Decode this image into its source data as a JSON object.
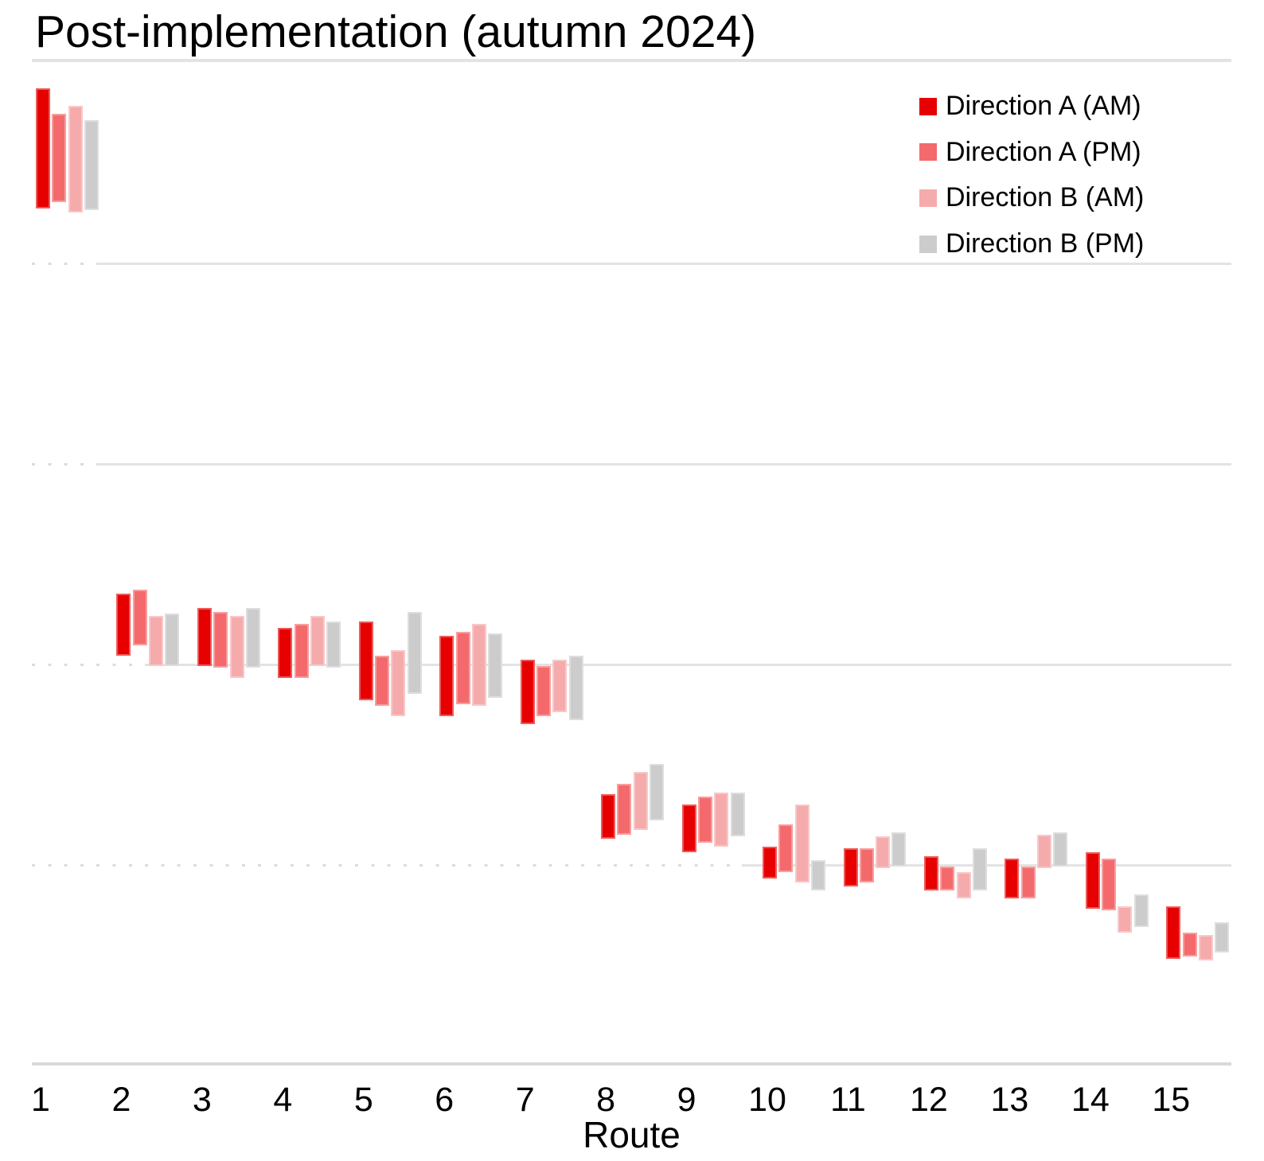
{
  "chart": {
    "title": "Post-implementation (autumn 2024)",
    "x_axis_title": "Route"
  },
  "chart_data": {
    "type": "bar",
    "subtype": "floating-range-bars",
    "title": "Post-implementation (autumn 2024)",
    "xlabel": "Route",
    "ylabel": "",
    "y_axis_note": "no y-axis tick labels visible; values expressed in gridline units (x-axis baseline = 0, horizontal gridlines at 1, 2, 3, 4)",
    "grid": "horizontal-only",
    "gridlines_at": [
      1,
      2,
      3,
      4
    ],
    "ylim": [
      0,
      4.95
    ],
    "legend_position": "top-right",
    "categories": [
      "1",
      "2",
      "3",
      "4",
      "5",
      "6",
      "7",
      "8",
      "9",
      "10",
      "11",
      "12",
      "13",
      "14",
      "15"
    ],
    "series": [
      {
        "name": "Direction A (AM)",
        "color": "#e60000",
        "ranges": [
          [
            4.27,
            4.87
          ],
          [
            2.04,
            2.35
          ],
          [
            1.99,
            2.28
          ],
          [
            1.93,
            2.18
          ],
          [
            1.82,
            2.21
          ],
          [
            1.74,
            2.14
          ],
          [
            1.7,
            2.02
          ],
          [
            1.13,
            1.35
          ],
          [
            1.06,
            1.3
          ],
          [
            0.93,
            1.09
          ],
          [
            0.89,
            1.08
          ],
          [
            0.87,
            1.04
          ],
          [
            0.83,
            1.03
          ],
          [
            0.78,
            1.06
          ],
          [
            0.53,
            0.79
          ]
        ]
      },
      {
        "name": "Direction A (PM)",
        "color": "#f46a6c",
        "ranges": [
          [
            4.3,
            4.74
          ],
          [
            2.09,
            2.37
          ],
          [
            1.98,
            2.26
          ],
          [
            1.93,
            2.2
          ],
          [
            1.79,
            2.04
          ],
          [
            1.8,
            2.16
          ],
          [
            1.74,
            1.99
          ],
          [
            1.15,
            1.4
          ],
          [
            1.11,
            1.34
          ],
          [
            0.96,
            1.2
          ],
          [
            0.91,
            1.08
          ],
          [
            0.87,
            0.99
          ],
          [
            0.83,
            0.99
          ],
          [
            0.77,
            1.03
          ],
          [
            0.54,
            0.66
          ]
        ]
      },
      {
        "name": "Direction B (AM)",
        "color": "#f5abac",
        "ranges": [
          [
            4.25,
            4.78
          ],
          [
            1.99,
            2.24
          ],
          [
            1.93,
            2.24
          ],
          [
            1.99,
            2.24
          ],
          [
            1.74,
            2.07
          ],
          [
            1.79,
            2.2
          ],
          [
            1.76,
            2.02
          ],
          [
            1.17,
            1.46
          ],
          [
            1.09,
            1.36
          ],
          [
            0.91,
            1.3
          ],
          [
            0.98,
            1.14
          ],
          [
            0.83,
            0.96
          ],
          [
            0.98,
            1.15
          ],
          [
            0.66,
            0.79
          ],
          [
            0.52,
            0.65
          ]
        ]
      },
      {
        "name": "Direction B (PM)",
        "color": "#cccccc",
        "ranges": [
          [
            4.26,
            4.71
          ],
          [
            1.99,
            2.25
          ],
          [
            1.98,
            2.28
          ],
          [
            1.98,
            2.21
          ],
          [
            1.85,
            2.26
          ],
          [
            1.83,
            2.15
          ],
          [
            1.72,
            2.04
          ],
          [
            1.22,
            1.5
          ],
          [
            1.14,
            1.36
          ],
          [
            0.87,
            1.02
          ],
          [
            0.99,
            1.16
          ],
          [
            0.87,
            1.08
          ],
          [
            0.99,
            1.16
          ],
          [
            0.69,
            0.85
          ],
          [
            0.56,
            0.71
          ]
        ]
      }
    ],
    "colors": {
      "grid": "#e3e3e3",
      "axis": "#d9d9d9",
      "text": "#000000"
    }
  }
}
